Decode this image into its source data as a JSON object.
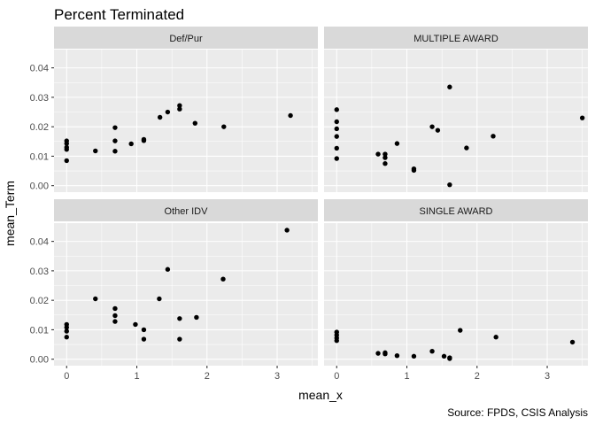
{
  "chart_data": {
    "type": "scatter",
    "title": "Percent Terminated",
    "xlabel": "mean_x",
    "ylabel": "mean_Term",
    "caption": "Source: FPDS, CSIS Analysis",
    "xlim": [
      -0.18,
      3.58
    ],
    "ylim": [
      -0.0022,
      0.0462
    ],
    "x_ticks": [
      0,
      1,
      2,
      3
    ],
    "y_ticks": [
      0.0,
      0.01,
      0.02,
      0.03,
      0.04
    ],
    "x_tick_labels": [
      "0",
      "1",
      "2",
      "3"
    ],
    "y_tick_labels": [
      "0.00",
      "0.01",
      "0.02",
      "0.03",
      "0.04"
    ],
    "grid": true,
    "point_color": "#000000",
    "panels": [
      {
        "name": "Def/Pur",
        "points": [
          [
            0,
            0.0152
          ],
          [
            0,
            0.0143
          ],
          [
            0,
            0.013
          ],
          [
            0,
            0.0123
          ],
          [
            0,
            0.0085
          ],
          [
            0.41,
            0.0118
          ],
          [
            0.69,
            0.0197
          ],
          [
            0.69,
            0.0152
          ],
          [
            0.69,
            0.0117
          ],
          [
            0.92,
            0.0142
          ],
          [
            1.1,
            0.0157
          ],
          [
            1.1,
            0.0153
          ],
          [
            1.33,
            0.0232
          ],
          [
            1.44,
            0.025
          ],
          [
            1.61,
            0.0272
          ],
          [
            1.61,
            0.026
          ],
          [
            1.83,
            0.0212
          ],
          [
            2.24,
            0.02
          ],
          [
            3.19,
            0.0238
          ]
        ]
      },
      {
        "name": "MULTIPLE AWARD",
        "points": [
          [
            0,
            0.0258
          ],
          [
            0,
            0.0217
          ],
          [
            0,
            0.0193
          ],
          [
            0,
            0.0167
          ],
          [
            0,
            0.0127
          ],
          [
            0,
            0.0092
          ],
          [
            0.59,
            0.0107
          ],
          [
            0.69,
            0.0107
          ],
          [
            0.69,
            0.0095
          ],
          [
            0.69,
            0.0075
          ],
          [
            0.86,
            0.0143
          ],
          [
            1.1,
            0.0057
          ],
          [
            1.1,
            0.0052
          ],
          [
            1.36,
            0.02
          ],
          [
            1.44,
            0.0188
          ],
          [
            1.61,
            0.0335
          ],
          [
            1.61,
            0.0003
          ],
          [
            1.85,
            0.0128
          ],
          [
            2.23,
            0.0168
          ],
          [
            3.5,
            0.023
          ]
        ]
      },
      {
        "name": "Other IDV",
        "points": [
          [
            0,
            0.0118
          ],
          [
            0,
            0.0108
          ],
          [
            0,
            0.0095
          ],
          [
            0,
            0.0075
          ],
          [
            0.41,
            0.0205
          ],
          [
            0.69,
            0.0172
          ],
          [
            0.69,
            0.0148
          ],
          [
            0.69,
            0.0128
          ],
          [
            0.98,
            0.0118
          ],
          [
            1.1,
            0.01
          ],
          [
            1.1,
            0.0068
          ],
          [
            1.32,
            0.0205
          ],
          [
            1.44,
            0.0305
          ],
          [
            1.61,
            0.0138
          ],
          [
            1.61,
            0.0068
          ],
          [
            1.85,
            0.0142
          ],
          [
            2.23,
            0.0272
          ],
          [
            3.14,
            0.0438
          ]
        ]
      },
      {
        "name": "SINGLE AWARD",
        "points": [
          [
            0,
            0.0092
          ],
          [
            0,
            0.0082
          ],
          [
            0,
            0.0072
          ],
          [
            0,
            0.0063
          ],
          [
            0.59,
            0.002
          ],
          [
            0.69,
            0.0022
          ],
          [
            0.69,
            0.0018
          ],
          [
            0.86,
            0.0012
          ],
          [
            1.1,
            0.001
          ],
          [
            1.36,
            0.0027
          ],
          [
            1.53,
            0.001
          ],
          [
            1.61,
            0.0005
          ],
          [
            1.61,
            0.0002
          ],
          [
            1.76,
            0.0098
          ],
          [
            2.27,
            0.0075
          ],
          [
            3.36,
            0.0058
          ]
        ]
      }
    ]
  }
}
